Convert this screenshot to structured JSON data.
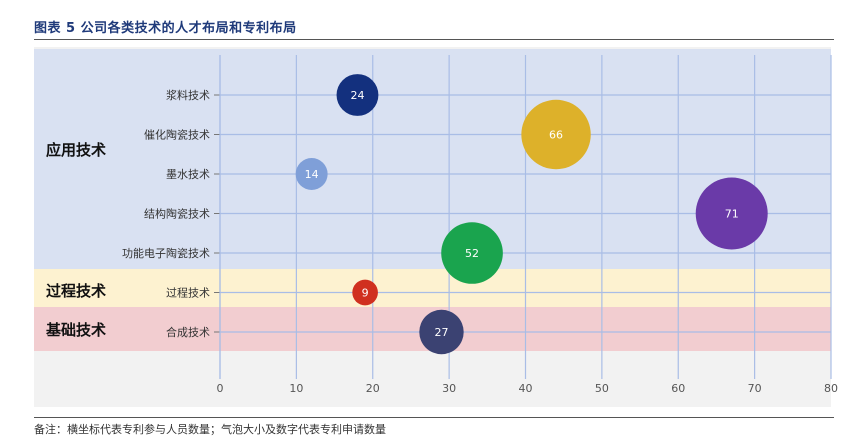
{
  "figure": {
    "title": "图表 5 公司各类技术的人才布局和专利布局",
    "note": "备注：横坐标代表专利参与人员数量；气泡大小及数字代表专利申请数量"
  },
  "colors": {
    "band_application": "#d9e1f2",
    "band_process": "#fdf2d0",
    "band_basic": "#f2cdd0",
    "plot_bg": "#f2f2f2",
    "grid": "#a9bde6"
  },
  "chart_data": {
    "type": "scatter",
    "title": "",
    "xlabel": "",
    "ylabel": "",
    "xlim": [
      0,
      80
    ],
    "xticks": [
      0,
      10,
      20,
      30,
      40,
      50,
      60,
      70,
      80
    ],
    "grid": true,
    "categories": [
      "浆料技术",
      "催化陶瓷技术",
      "墨水技术",
      "结构陶瓷技术",
      "功能电子陶瓷技术",
      "过程技术",
      "合成技术"
    ],
    "groups": [
      {
        "label": "应用技术",
        "categories": [
          "浆料技术",
          "催化陶瓷技术",
          "墨水技术",
          "结构陶瓷技术",
          "功能电子陶瓷技术"
        ]
      },
      {
        "label": "过程技术",
        "categories": [
          "过程技术"
        ]
      },
      {
        "label": "基础技术",
        "categories": [
          "合成技术"
        ]
      }
    ],
    "points": [
      {
        "category": "浆料技术",
        "x": 18,
        "size": 24,
        "label": "24",
        "color": "#13307e"
      },
      {
        "category": "催化陶瓷技术",
        "x": 44,
        "size": 66,
        "label": "66",
        "color": "#ddb12a"
      },
      {
        "category": "墨水技术",
        "x": 12,
        "size": 14,
        "label": "14",
        "color": "#7f9fd8"
      },
      {
        "category": "结构陶瓷技术",
        "x": 67,
        "size": 71,
        "label": "71",
        "color": "#6a3aa8"
      },
      {
        "category": "功能电子陶瓷技术",
        "x": 33,
        "size": 52,
        "label": "52",
        "color": "#1aa44e"
      },
      {
        "category": "过程技术",
        "x": 19,
        "size": 9,
        "label": "9",
        "color": "#d0301f"
      },
      {
        "category": "合成技术",
        "x": 29,
        "size": 27,
        "label": "27",
        "color": "#3b4272"
      }
    ]
  }
}
